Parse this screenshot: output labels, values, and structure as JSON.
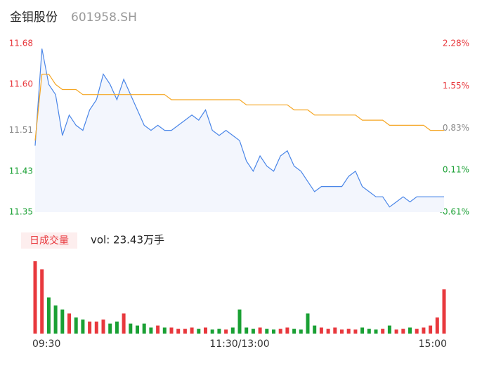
{
  "header": {
    "title": "金钼股份",
    "code": "601958.SH"
  },
  "chart_data": [
    {
      "type": "line",
      "categories": [
        "09:30",
        null,
        null,
        null,
        null,
        null,
        null,
        null,
        null,
        null,
        null,
        null,
        null,
        null,
        null,
        null,
        null,
        null,
        null,
        null,
        null,
        null,
        null,
        null,
        null,
        null,
        null,
        null,
        null,
        null,
        "11:30/13:00",
        null,
        null,
        null,
        null,
        null,
        null,
        null,
        null,
        null,
        null,
        null,
        null,
        null,
        null,
        null,
        null,
        null,
        null,
        null,
        null,
        null,
        null,
        null,
        null,
        null,
        null,
        null,
        null,
        null,
        "15:00"
      ],
      "series": [
        {
          "color": "#4a86e8",
          "fill": "#f3f6fd",
          "values": [
            11.48,
            11.67,
            11.6,
            11.58,
            11.5,
            11.54,
            11.52,
            11.51,
            11.55,
            11.57,
            11.62,
            11.6,
            11.57,
            11.61,
            11.58,
            11.55,
            11.52,
            11.51,
            11.52,
            11.51,
            11.51,
            11.52,
            11.53,
            11.54,
            11.53,
            11.55,
            11.51,
            11.5,
            11.51,
            11.5,
            11.49,
            11.45,
            11.43,
            11.46,
            11.44,
            11.43,
            11.46,
            11.47,
            11.44,
            11.43,
            11.41,
            11.39,
            11.4,
            11.4,
            11.4,
            11.4,
            11.42,
            11.43,
            11.4,
            11.39,
            11.38,
            11.38,
            11.36,
            11.37,
            11.38,
            11.37,
            11.38,
            11.38,
            11.38,
            11.38,
            11.38
          ]
        },
        {
          "color": "#f5a623",
          "values": [
            11.49,
            11.62,
            11.62,
            11.6,
            11.59,
            11.59,
            11.59,
            11.58,
            11.58,
            11.58,
            11.58,
            11.58,
            11.58,
            11.58,
            11.58,
            11.58,
            11.58,
            11.58,
            11.58,
            11.58,
            11.57,
            11.57,
            11.57,
            11.57,
            11.57,
            11.57,
            11.57,
            11.57,
            11.57,
            11.57,
            11.57,
            11.56,
            11.56,
            11.56,
            11.56,
            11.56,
            11.56,
            11.56,
            11.55,
            11.55,
            11.55,
            11.54,
            11.54,
            11.54,
            11.54,
            11.54,
            11.54,
            11.54,
            11.53,
            11.53,
            11.53,
            11.53,
            11.52,
            11.52,
            11.52,
            11.52,
            11.52,
            11.52,
            11.51,
            11.51,
            11.51
          ]
        }
      ],
      "ylim": [
        11.35,
        11.68
      ],
      "yticks": [
        11.68,
        {
          "value": 11.6,
          "label": "11.60"
        },
        11.51,
        11.43,
        11.35
      ],
      "y2lim": [
        -0.61,
        2.28
      ],
      "y2ticks": [
        {
          "value": 2.28,
          "label": "2.28%"
        },
        {
          "value": 1.55,
          "label": "1.55%"
        },
        {
          "value": 0.83,
          "label": "0.83%"
        },
        {
          "value": 0.11,
          "label": "0.11%"
        },
        {
          "value": -0.61,
          "label": "-0.61%"
        }
      ],
      "up_color": "#e8383d",
      "flat_color": "#888888",
      "down_color": "#1aa034"
    },
    {
      "type": "bar",
      "tab": "日成交量",
      "summary": "vol: 23.43万手",
      "up_color": "#e8383d",
      "down_color": "#1aa034",
      "values": [
        1.8,
        1.6,
        0.9,
        0.7,
        0.6,
        0.5,
        0.4,
        0.35,
        0.3,
        0.3,
        0.35,
        0.25,
        0.3,
        0.5,
        0.25,
        0.2,
        0.25,
        0.15,
        0.2,
        0.15,
        0.15,
        0.12,
        0.12,
        0.15,
        0.12,
        0.15,
        0.1,
        0.12,
        0.1,
        0.15,
        0.6,
        0.15,
        0.12,
        0.15,
        0.12,
        0.1,
        0.12,
        0.15,
        0.12,
        0.1,
        0.5,
        0.2,
        0.15,
        0.12,
        0.15,
        0.1,
        0.12,
        0.1,
        0.15,
        0.12,
        0.1,
        0.12,
        0.2,
        0.1,
        0.12,
        0.15,
        0.12,
        0.15,
        0.2,
        0.4,
        1.1
      ]
    }
  ]
}
